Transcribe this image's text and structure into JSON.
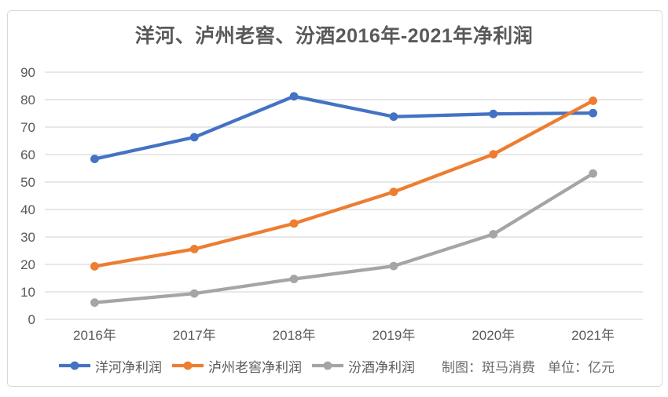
{
  "chart_data": {
    "type": "line",
    "title": "洋河、泸州老窖、汾酒2016年-2021年净利润",
    "categories": [
      "2016年",
      "2017年",
      "2018年",
      "2019年",
      "2020年",
      "2021年"
    ],
    "series": [
      {
        "name": "洋河净利润",
        "color": "#4472C4",
        "values": [
          58.4,
          66.3,
          81.2,
          73.8,
          74.8,
          75.1
        ]
      },
      {
        "name": "泸州老窖净利润",
        "color": "#ED7D31",
        "values": [
          19.3,
          25.6,
          34.9,
          46.4,
          60.1,
          79.6
        ]
      },
      {
        "name": "汾酒净利润",
        "color": "#A5A5A5",
        "values": [
          6.1,
          9.4,
          14.7,
          19.4,
          31.0,
          53.1
        ]
      }
    ],
    "ylim": [
      0,
      90
    ],
    "yticks": [
      0,
      10,
      20,
      30,
      40,
      50,
      60,
      70,
      80,
      90
    ],
    "grid": "horizontal-only",
    "marker": "circle",
    "legend_position": "bottom",
    "source_note": "制图：斑马消费",
    "unit_note": "单位：亿元"
  },
  "colors": {
    "grid": "#D9D9D9",
    "axis_text": "#595959",
    "title_text": "#595959",
    "card_border": "#D9D9D9",
    "background": "#FFFFFF"
  }
}
